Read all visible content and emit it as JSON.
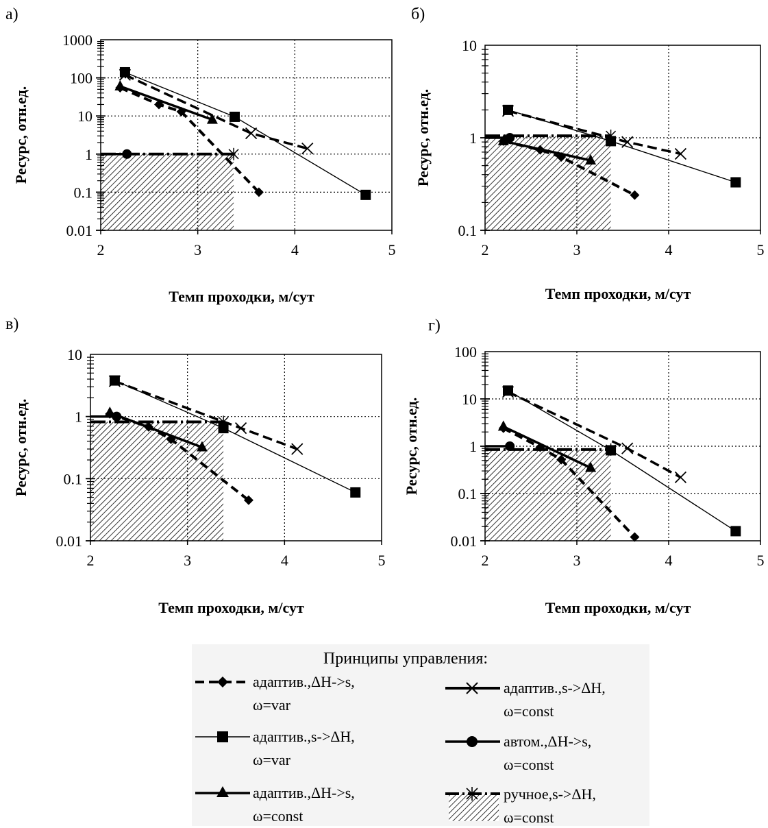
{
  "legend": {
    "title": "Принципы управления:",
    "entries": [
      {
        "id": "s1",
        "line1": "адаптив.,ΔH->s,",
        "line2": "ω=var",
        "icon": "diamond-marker-icon",
        "dash": "dashed-heavy",
        "marker": "diamond"
      },
      {
        "id": "s2",
        "line1": "адаптив.,s->ΔH,",
        "line2": "ω=var",
        "icon": "square-marker-icon",
        "dash": "solid-thin",
        "marker": "square"
      },
      {
        "id": "s3",
        "line1": "адаптив.,ΔH->s,",
        "line2": "ω=const",
        "icon": "triangle-marker-icon",
        "dash": "solid-heavy",
        "marker": "triangle"
      },
      {
        "id": "s4",
        "line1": "адаптив.,s->ΔH,",
        "line2": "ω=const",
        "icon": "x-marker-icon",
        "dash": "dashed-heavy",
        "marker": "x"
      },
      {
        "id": "s5",
        "line1": "автом.,ΔH->s,",
        "line2": "ω=const",
        "icon": "circle-marker-icon",
        "dash": "solid-heavy",
        "marker": "circle"
      },
      {
        "id": "s6",
        "line1": "ручное,s->ΔH,",
        "line2": "ω=const",
        "icon": "asterisk-hatch-icon",
        "dash": "dashdot-heavy",
        "marker": "star"
      }
    ]
  },
  "chart_data": [
    {
      "type": "line",
      "panel_label": "а)",
      "xlabel": "Темп проходки, м/сут",
      "ylabel": "Ресурс, отн.ед.",
      "xlim": [
        2,
        5
      ],
      "ylim": [
        0.01,
        1000
      ],
      "yscale": "log",
      "x_ticks": [
        "2",
        "3",
        "4",
        "5"
      ],
      "y_ticks": [
        "1000",
        "100",
        "10",
        "1",
        "0.1",
        "0.01"
      ],
      "grid": true,
      "hatched_region": {
        "x": [
          2,
          3.37
        ],
        "y_top": 1
      },
      "series": [
        {
          "legend_id": "s1",
          "x": [
            2.2,
            2.6,
            2.83,
            3.63
          ],
          "y": [
            55,
            20,
            13,
            0.1
          ]
        },
        {
          "legend_id": "s2",
          "x": [
            2.25,
            3.38,
            4.73
          ],
          "y": [
            140,
            9.5,
            0.085
          ]
        },
        {
          "legend_id": "s3",
          "x": [
            2.2,
            3.15
          ],
          "y": [
            60,
            8
          ]
        },
        {
          "legend_id": "s4",
          "x": [
            2.25,
            3.55,
            4.13
          ],
          "y": [
            120,
            3.5,
            1.4
          ]
        },
        {
          "legend_id": "s5",
          "x": [
            2.0,
            2.27
          ],
          "y": [
            1,
            1
          ]
        },
        {
          "legend_id": "s6",
          "x": [
            2.0,
            3.37
          ],
          "y": [
            1,
            1
          ]
        }
      ]
    },
    {
      "type": "line",
      "panel_label": "б)",
      "xlabel": "Темп проходки, м/сут",
      "ylabel": "Ресурс, отн.ед.",
      "xlim": [
        2,
        5
      ],
      "ylim": [
        0.1,
        10
      ],
      "yscale": "log",
      "x_ticks": [
        "2",
        "3",
        "4",
        "5"
      ],
      "y_ticks": [
        "10",
        "1",
        "0.1"
      ],
      "grid": true,
      "hatched_region": {
        "x": [
          2,
          3.37
        ],
        "y_top": 1.05
      },
      "series": [
        {
          "legend_id": "s1",
          "x": [
            2.2,
            2.6,
            2.83,
            3.63
          ],
          "y": [
            0.92,
            0.74,
            0.62,
            0.24
          ]
        },
        {
          "legend_id": "s2",
          "x": [
            2.25,
            3.37,
            4.73
          ],
          "y": [
            2.0,
            0.92,
            0.33
          ]
        },
        {
          "legend_id": "s3",
          "x": [
            2.2,
            3.15
          ],
          "y": [
            0.92,
            0.57
          ]
        },
        {
          "legend_id": "s4",
          "x": [
            2.25,
            3.55,
            4.13
          ],
          "y": [
            1.95,
            0.9,
            0.67
          ]
        },
        {
          "legend_id": "s5",
          "x": [
            2.0,
            2.27
          ],
          "y": [
            1.0,
            1.0
          ]
        },
        {
          "legend_id": "s6",
          "x": [
            2.0,
            3.37
          ],
          "y": [
            1.05,
            1.05
          ]
        }
      ]
    },
    {
      "type": "line",
      "panel_label": "в)",
      "xlabel": "Темп проходки, м/сут",
      "ylabel": "Ресурс, отн.ед.",
      "xlim": [
        2,
        5
      ],
      "ylim": [
        0.01,
        10
      ],
      "yscale": "log",
      "x_ticks": [
        "2",
        "3",
        "4",
        "5"
      ],
      "y_ticks": [
        "10",
        "1",
        "0.1",
        "0.01"
      ],
      "grid": true,
      "hatched_region": {
        "x": [
          2,
          3.37
        ],
        "y_top": 0.82
      },
      "series": [
        {
          "legend_id": "s1",
          "x": [
            2.2,
            2.6,
            2.83,
            3.63
          ],
          "y": [
            1.1,
            0.68,
            0.43,
            0.045
          ]
        },
        {
          "legend_id": "s2",
          "x": [
            2.25,
            3.37,
            4.73
          ],
          "y": [
            3.8,
            0.65,
            0.06
          ]
        },
        {
          "legend_id": "s3",
          "x": [
            2.2,
            3.15
          ],
          "y": [
            1.15,
            0.32
          ]
        },
        {
          "legend_id": "s4",
          "x": [
            2.25,
            3.55,
            4.13
          ],
          "y": [
            3.7,
            0.65,
            0.3
          ]
        },
        {
          "legend_id": "s5",
          "x": [
            2.0,
            2.27
          ],
          "y": [
            1.0,
            1.0
          ]
        },
        {
          "legend_id": "s6",
          "x": [
            2.0,
            3.37
          ],
          "y": [
            0.82,
            0.82
          ]
        }
      ]
    },
    {
      "type": "line",
      "panel_label": "г)",
      "xlabel": "Темп проходки, м/сут",
      "ylabel": "Ресурс, отн.ед.",
      "xlim": [
        2,
        5
      ],
      "ylim": [
        0.01,
        100
      ],
      "yscale": "log",
      "x_ticks": [
        "2",
        "3",
        "4",
        "5"
      ],
      "y_ticks": [
        "100",
        "10",
        "1",
        "0.1",
        "0.01"
      ],
      "grid": true,
      "hatched_region": {
        "x": [
          2,
          3.37
        ],
        "y_top": 0.85
      },
      "series": [
        {
          "legend_id": "s1",
          "x": [
            2.2,
            2.6,
            2.83,
            3.63
          ],
          "y": [
            2.4,
            0.95,
            0.52,
            0.012
          ]
        },
        {
          "legend_id": "s2",
          "x": [
            2.25,
            3.37,
            4.73
          ],
          "y": [
            15,
            0.82,
            0.016
          ]
        },
        {
          "legend_id": "s3",
          "x": [
            2.2,
            3.15
          ],
          "y": [
            2.6,
            0.35
          ]
        },
        {
          "legend_id": "s4",
          "x": [
            2.25,
            3.55,
            4.13
          ],
          "y": [
            14,
            0.9,
            0.22
          ]
        },
        {
          "legend_id": "s5",
          "x": [
            2.0,
            2.27
          ],
          "y": [
            1.0,
            1.0
          ]
        },
        {
          "legend_id": "s6",
          "x": [
            2.0,
            3.37
          ],
          "y": [
            0.85,
            0.85
          ]
        }
      ]
    }
  ]
}
